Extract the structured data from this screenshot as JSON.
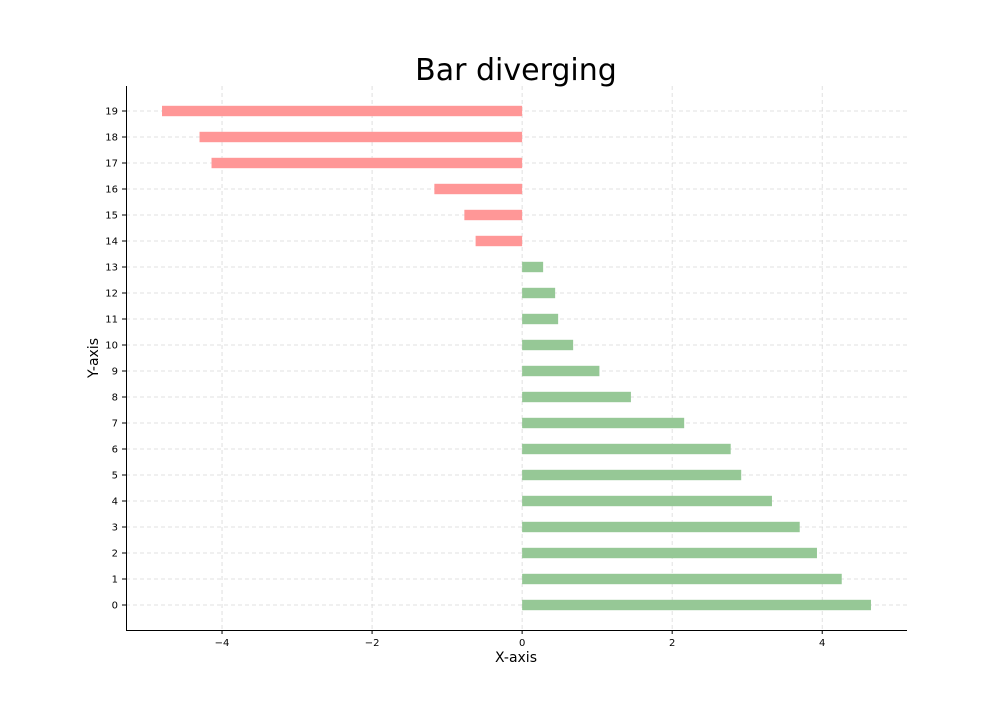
{
  "chart_data": {
    "type": "bar",
    "orientation": "horizontal",
    "title": "Bar diverging",
    "xlabel": "X-axis",
    "ylabel": "Y-axis",
    "categories": [
      "0",
      "1",
      "2",
      "3",
      "4",
      "5",
      "6",
      "7",
      "8",
      "9",
      "10",
      "11",
      "12",
      "13",
      "14",
      "15",
      "16",
      "17",
      "18",
      "19"
    ],
    "values": [
      4.65,
      4.26,
      3.93,
      3.7,
      3.33,
      2.92,
      2.78,
      2.16,
      1.45,
      1.03,
      0.68,
      0.48,
      0.44,
      0.28,
      -0.62,
      -0.77,
      -1.17,
      -4.14,
      -4.3,
      -4.8
    ],
    "xlim": [
      -5.28,
      5.13
    ],
    "xticks": [
      -4,
      -2,
      0,
      2,
      4
    ],
    "xtick_labels": [
      "−4",
      "−2",
      "0",
      "2",
      "4"
    ],
    "grid": true,
    "colors": {
      "positive": "#96c896",
      "negative": "#ff9797"
    }
  }
}
